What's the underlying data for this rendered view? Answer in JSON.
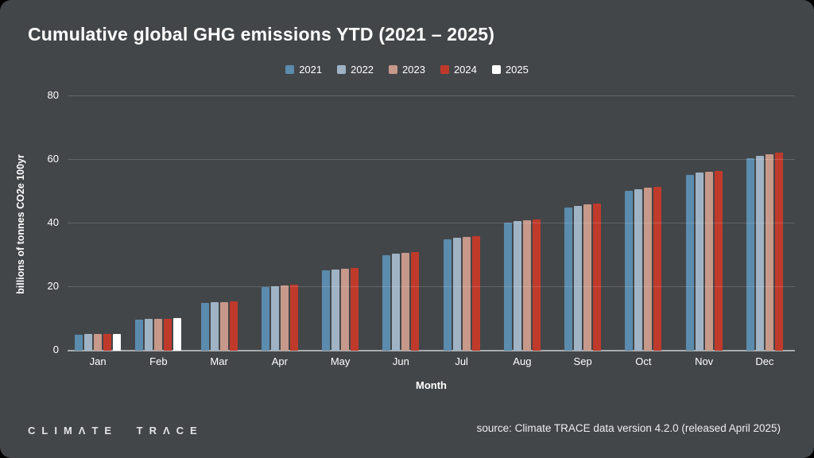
{
  "header": {
    "title": "Cumulative global GHG emissions YTD (2021 – 2025)"
  },
  "chart_data": {
    "type": "bar",
    "title": "Cumulative global GHG emissions YTD (2021 – 2025)",
    "xlabel": "Month",
    "ylabel": "billions of tonnes CO2e 100yr",
    "ylim": [
      0,
      80
    ],
    "yticks": [
      0,
      20,
      40,
      60,
      80
    ],
    "grid": true,
    "legend_position": "top",
    "categories": [
      "Jan",
      "Feb",
      "Mar",
      "Apr",
      "May",
      "Jun",
      "Jul",
      "Aug",
      "Sep",
      "Oct",
      "Nov",
      "Dec"
    ],
    "series": [
      {
        "name": "2021",
        "color": "#5b8bad",
        "values": [
          5.1,
          9.8,
          15.0,
          20.1,
          25.2,
          30.1,
          35.1,
          40.2,
          45.0,
          50.3,
          55.2,
          60.4
        ]
      },
      {
        "name": "2022",
        "color": "#9fb3c5",
        "values": [
          5.2,
          9.9,
          15.2,
          20.3,
          25.5,
          30.5,
          35.4,
          40.7,
          45.6,
          50.8,
          55.9,
          61.2
        ]
      },
      {
        "name": "2023",
        "color": "#c6998a",
        "values": [
          5.2,
          10.0,
          15.3,
          20.5,
          25.7,
          30.7,
          35.7,
          41.0,
          45.9,
          51.2,
          56.2,
          61.8
        ]
      },
      {
        "name": "2024",
        "color": "#c03a2b",
        "values": [
          5.3,
          10.1,
          15.5,
          20.7,
          26.0,
          31.0,
          35.9,
          41.3,
          46.3,
          51.5,
          56.6,
          62.3
        ]
      },
      {
        "name": "2025",
        "color": "#ffffff",
        "values": [
          5.3,
          10.2,
          null,
          null,
          null,
          null,
          null,
          null,
          null,
          null,
          null,
          null
        ]
      }
    ]
  },
  "footer": {
    "logo_text": "CLIMΛTE TRΛCE",
    "source_text": "source: Climate TRACE data version 4.2.0 (released April 2025)"
  },
  "colors": {
    "page_background": "#000000",
    "card_background": "#434649",
    "text": "#ffffff",
    "gridline": "#5a5d60",
    "axis_line": "#a9acae"
  }
}
